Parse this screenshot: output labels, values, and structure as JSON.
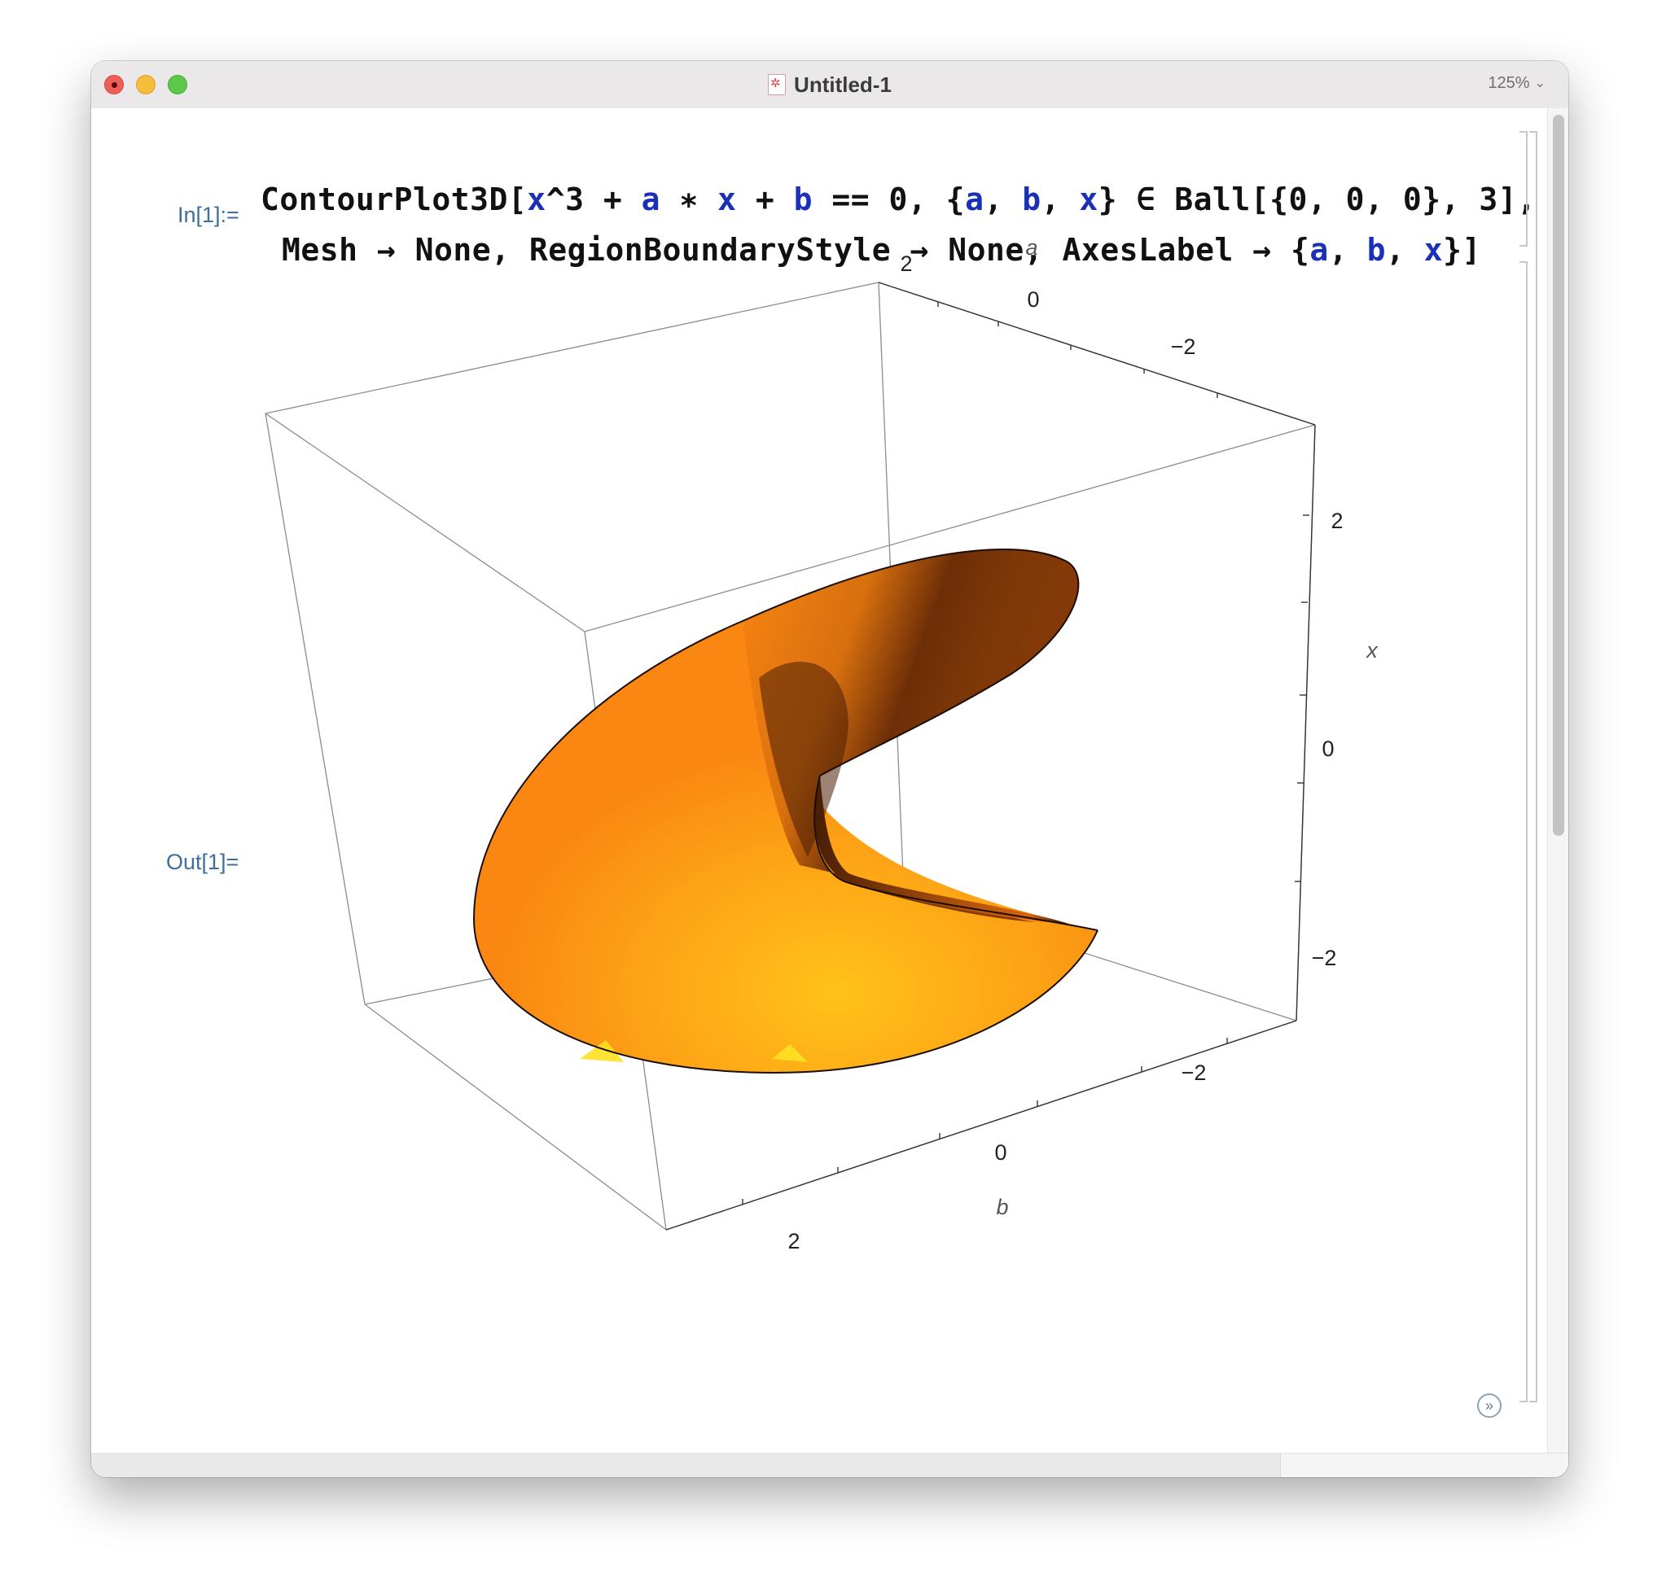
{
  "window": {
    "title": "Untitled-1",
    "zoom": "125%"
  },
  "cells": {
    "input_label": "In[1]:=",
    "output_label": "Out[1]=",
    "code": {
      "l1_fn": "ContourPlot3D[",
      "l1_x1": "x",
      "l1_p1": "^3 + ",
      "l1_a1": "a",
      "l1_p2": " ∗ ",
      "l1_x2": "x",
      "l1_p3": " + ",
      "l1_b1": "b",
      "l1_p4": " == 0, {",
      "l1_a2": "a",
      "l1_p5": ", ",
      "l1_b2": "b",
      "l1_p6": ", ",
      "l1_x3": "x",
      "l1_p7": "} ∈ Ball[{0, 0, 0}, 3],",
      "l2_p1": "Mesh → None, RegionBoundaryStyle → None, AxesLabel → {",
      "l2_a": "a",
      "l2_p2": ", ",
      "l2_b": "b",
      "l2_p3": ", ",
      "l2_x": "x",
      "l2_p4": "}]"
    }
  },
  "plot": {
    "axes": {
      "a": {
        "label": "a",
        "ticks": [
          "2",
          "0",
          "−2"
        ]
      },
      "x": {
        "label": "x",
        "ticks": [
          "2",
          "0",
          "−2"
        ]
      },
      "b": {
        "label": "b",
        "ticks": [
          "−2",
          "0",
          "2"
        ]
      }
    },
    "surface_colors": {
      "light": "#ffc21a",
      "mid": "#fa8a14",
      "dark": "#8a3a08",
      "darkest": "#2c1204"
    }
  }
}
